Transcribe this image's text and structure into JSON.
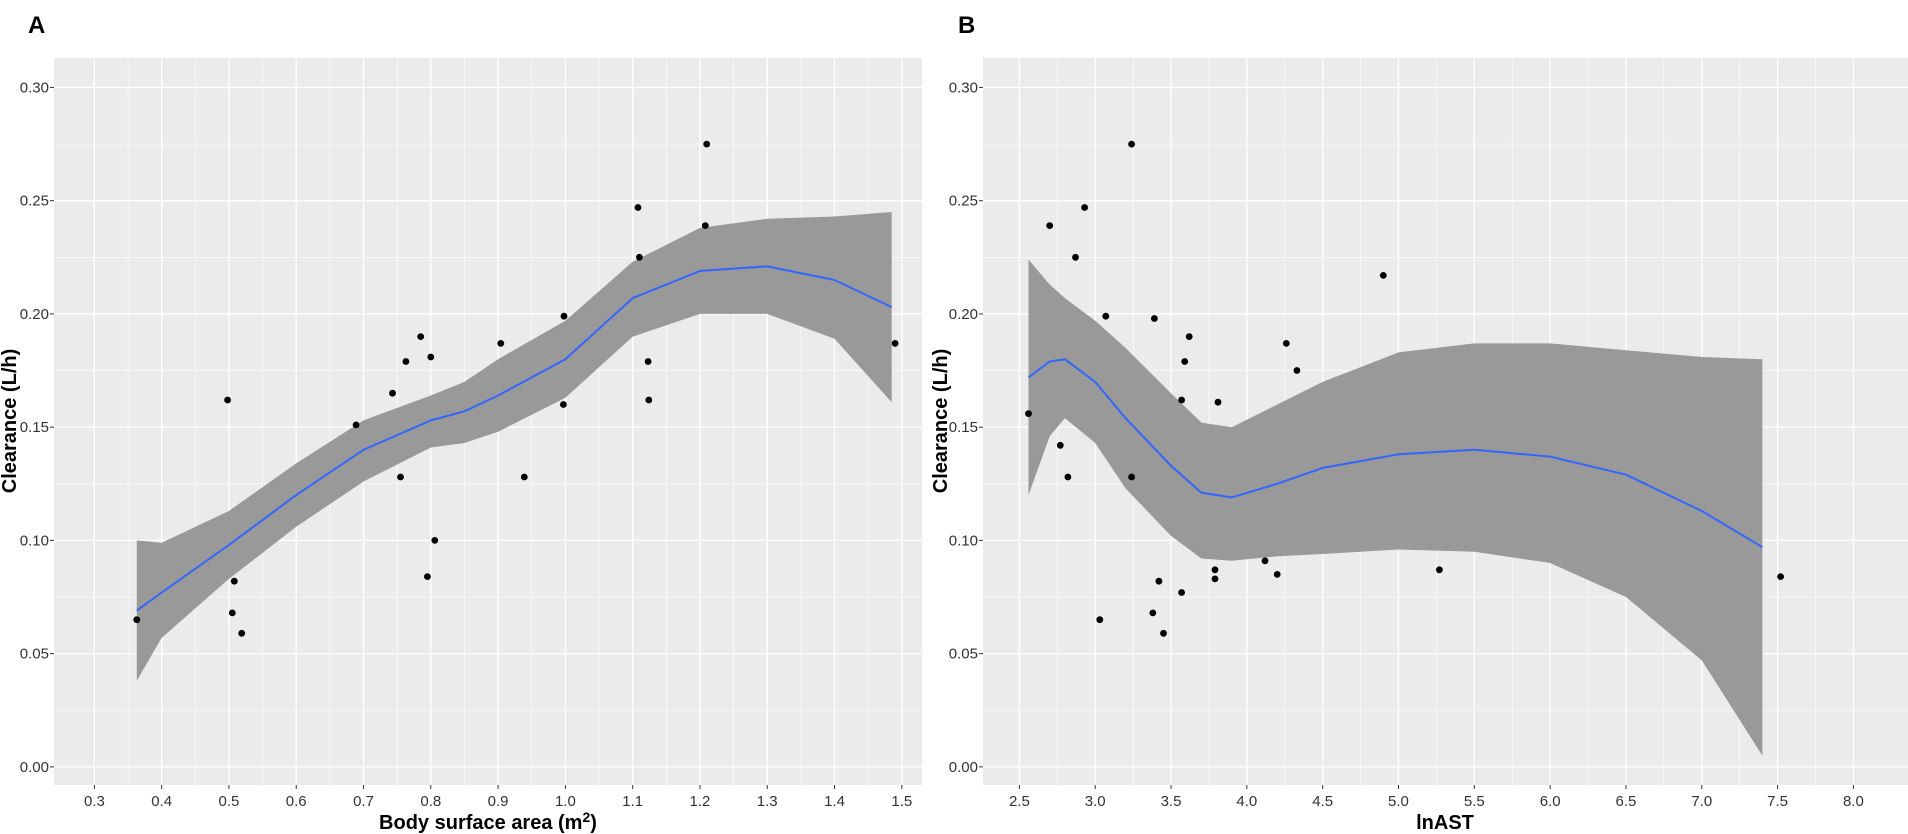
{
  "colors": {
    "panel_background": "#ebebeb",
    "grid": "#ffffff",
    "ribbon": "#999999",
    "line": "#3366ff",
    "point": "#000000"
  },
  "chart_data": [
    {
      "type": "scatter",
      "panel_label": "A",
      "title": "",
      "xlabel": "Body surface area (m2)",
      "xlabel_main": "Body surface area (m",
      "xlabel_sup": "2",
      "xlabel_end": ")",
      "ylabel": "Clearance (L/h)",
      "xlim": [
        0.24,
        1.53
      ],
      "ylim": [
        -0.008,
        0.313
      ],
      "x_ticks": [
        {
          "value": 0.3,
          "label": "0.3"
        },
        {
          "value": 0.4,
          "label": "0.4"
        },
        {
          "value": 0.5,
          "label": "0.5"
        },
        {
          "value": 0.6,
          "label": "0.6"
        },
        {
          "value": 0.7,
          "label": "0.7"
        },
        {
          "value": 0.8,
          "label": "0.8"
        },
        {
          "value": 0.9,
          "label": "0.9"
        },
        {
          "value": 1.0,
          "label": "1.0"
        },
        {
          "value": 1.1,
          "label": "1.1"
        },
        {
          "value": 1.2,
          "label": "1.2"
        },
        {
          "value": 1.3,
          "label": "1.3"
        },
        {
          "value": 1.4,
          "label": "1.4"
        },
        {
          "value": 1.5,
          "label": "1.5"
        }
      ],
      "y_ticks": [
        {
          "value": 0.0,
          "label": "0.00"
        },
        {
          "value": 0.05,
          "label": "0.05"
        },
        {
          "value": 0.1,
          "label": "0.10"
        },
        {
          "value": 0.15,
          "label": "0.15"
        },
        {
          "value": 0.2,
          "label": "0.20"
        },
        {
          "value": 0.25,
          "label": "0.25"
        },
        {
          "value": 0.3,
          "label": "0.30"
        }
      ],
      "points": [
        {
          "x": 0.363,
          "y": 0.065
        },
        {
          "x": 0.498,
          "y": 0.162
        },
        {
          "x": 0.505,
          "y": 0.068
        },
        {
          "x": 0.508,
          "y": 0.082
        },
        {
          "x": 0.519,
          "y": 0.059
        },
        {
          "x": 0.689,
          "y": 0.151
        },
        {
          "x": 0.743,
          "y": 0.165
        },
        {
          "x": 0.755,
          "y": 0.128
        },
        {
          "x": 0.763,
          "y": 0.179
        },
        {
          "x": 0.785,
          "y": 0.19
        },
        {
          "x": 0.795,
          "y": 0.084
        },
        {
          "x": 0.8,
          "y": 0.181
        },
        {
          "x": 0.806,
          "y": 0.1
        },
        {
          "x": 0.904,
          "y": 0.187
        },
        {
          "x": 0.939,
          "y": 0.128
        },
        {
          "x": 0.997,
          "y": 0.16
        },
        {
          "x": 0.998,
          "y": 0.199
        },
        {
          "x": 1.108,
          "y": 0.247
        },
        {
          "x": 1.11,
          "y": 0.225
        },
        {
          "x": 1.123,
          "y": 0.179
        },
        {
          "x": 1.124,
          "y": 0.162
        },
        {
          "x": 1.208,
          "y": 0.239
        },
        {
          "x": 1.21,
          "y": 0.275
        },
        {
          "x": 1.49,
          "y": 0.187
        }
      ],
      "smooth": {
        "x": [
          0.363,
          0.4,
          0.5,
          0.6,
          0.7,
          0.8,
          0.85,
          0.9,
          1.0,
          1.1,
          1.2,
          1.3,
          1.4,
          1.485
        ],
        "y": [
          0.069,
          0.077,
          0.098,
          0.12,
          0.14,
          0.153,
          0.157,
          0.164,
          0.18,
          0.207,
          0.219,
          0.221,
          0.215,
          0.203
        ],
        "lower": [
          0.038,
          0.057,
          0.083,
          0.106,
          0.126,
          0.141,
          0.143,
          0.148,
          0.163,
          0.19,
          0.2,
          0.2,
          0.189,
          0.161
        ],
        "upper": [
          0.1,
          0.099,
          0.113,
          0.134,
          0.153,
          0.164,
          0.17,
          0.18,
          0.197,
          0.223,
          0.238,
          0.242,
          0.243,
          0.245
        ]
      }
    },
    {
      "type": "scatter",
      "panel_label": "B",
      "title": "",
      "xlabel": "lnAST",
      "ylabel": "Clearance (L/h)",
      "xlim": [
        2.26,
        8.36
      ],
      "ylim": [
        -0.008,
        0.313
      ],
      "x_ticks": [
        {
          "value": 2.5,
          "label": "2.5"
        },
        {
          "value": 3.0,
          "label": "3.0"
        },
        {
          "value": 3.5,
          "label": "3.5"
        },
        {
          "value": 4.0,
          "label": "4.0"
        },
        {
          "value": 4.5,
          "label": "4.5"
        },
        {
          "value": 5.0,
          "label": "5.0"
        },
        {
          "value": 5.5,
          "label": "5.5"
        },
        {
          "value": 6.0,
          "label": "6.0"
        },
        {
          "value": 6.5,
          "label": "6.5"
        },
        {
          "value": 7.0,
          "label": "7.0"
        },
        {
          "value": 7.5,
          "label": "7.5"
        },
        {
          "value": 8.0,
          "label": "8.0"
        }
      ],
      "y_ticks": [
        {
          "value": 0.0,
          "label": "0.00"
        },
        {
          "value": 0.05,
          "label": "0.05"
        },
        {
          "value": 0.1,
          "label": "0.10"
        },
        {
          "value": 0.15,
          "label": "0.15"
        },
        {
          "value": 0.2,
          "label": "0.20"
        },
        {
          "value": 0.25,
          "label": "0.25"
        },
        {
          "value": 0.3,
          "label": "0.30"
        }
      ],
      "points": [
        {
          "x": 2.56,
          "y": 0.156
        },
        {
          "x": 2.7,
          "y": 0.239
        },
        {
          "x": 2.77,
          "y": 0.142
        },
        {
          "x": 2.82,
          "y": 0.128
        },
        {
          "x": 2.87,
          "y": 0.225
        },
        {
          "x": 2.93,
          "y": 0.247
        },
        {
          "x": 3.03,
          "y": 0.065
        },
        {
          "x": 3.07,
          "y": 0.199
        },
        {
          "x": 3.24,
          "y": 0.128
        },
        {
          "x": 3.24,
          "y": 0.275
        },
        {
          "x": 3.38,
          "y": 0.068
        },
        {
          "x": 3.39,
          "y": 0.198
        },
        {
          "x": 3.42,
          "y": 0.082
        },
        {
          "x": 3.45,
          "y": 0.059
        },
        {
          "x": 3.57,
          "y": 0.077
        },
        {
          "x": 3.57,
          "y": 0.162
        },
        {
          "x": 3.59,
          "y": 0.179
        },
        {
          "x": 3.62,
          "y": 0.19
        },
        {
          "x": 3.79,
          "y": 0.083
        },
        {
          "x": 3.79,
          "y": 0.087
        },
        {
          "x": 3.81,
          "y": 0.161
        },
        {
          "x": 4.12,
          "y": 0.091
        },
        {
          "x": 4.2,
          "y": 0.085
        },
        {
          "x": 4.26,
          "y": 0.187
        },
        {
          "x": 4.33,
          "y": 0.175
        },
        {
          "x": 4.9,
          "y": 0.217
        },
        {
          "x": 5.27,
          "y": 0.087
        },
        {
          "x": 7.52,
          "y": 0.084
        }
      ],
      "smooth": {
        "x": [
          2.56,
          2.7,
          2.8,
          3.0,
          3.2,
          3.5,
          3.7,
          3.9,
          4.2,
          4.5,
          5.0,
          5.5,
          6.0,
          6.5,
          7.0,
          7.4
        ],
        "y": [
          0.172,
          0.179,
          0.18,
          0.17,
          0.154,
          0.133,
          0.121,
          0.119,
          0.125,
          0.132,
          0.138,
          0.14,
          0.137,
          0.129,
          0.113,
          0.097
        ],
        "lower": [
          0.12,
          0.146,
          0.154,
          0.143,
          0.123,
          0.102,
          0.092,
          0.091,
          0.093,
          0.094,
          0.096,
          0.095,
          0.09,
          0.075,
          0.047,
          0.005
        ],
        "upper": [
          0.224,
          0.213,
          0.207,
          0.197,
          0.185,
          0.165,
          0.152,
          0.15,
          0.16,
          0.17,
          0.183,
          0.187,
          0.187,
          0.184,
          0.181,
          0.18
        ]
      }
    }
  ]
}
